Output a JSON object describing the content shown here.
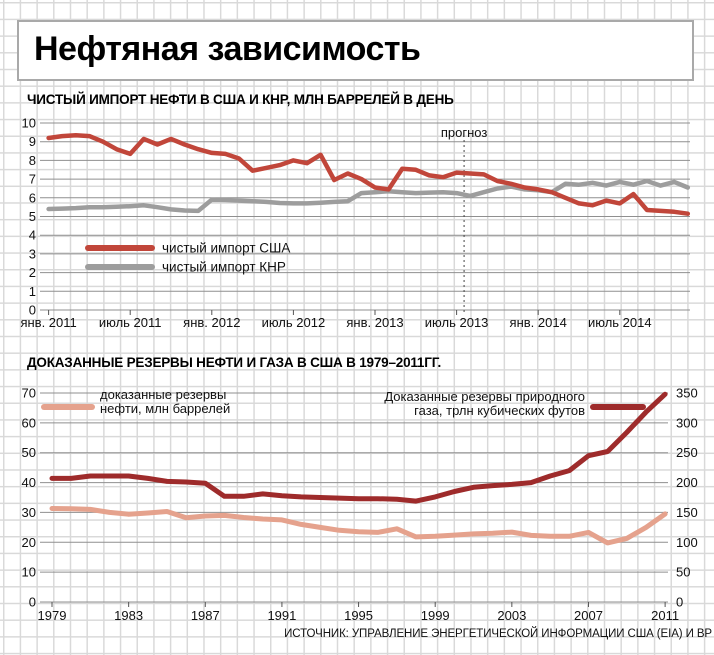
{
  "page": {
    "title": "Нефтяная зависимость",
    "source": "ИСТОЧНИК: УПРАВЛЕНИЕ ЭНЕРГЕТИЧЕСКОЙ ИНФОРМАЦИИ США (EIA) И BP"
  },
  "colors": {
    "usa_red": "#c1463a",
    "chn_gray": "#9d9d9d",
    "oil_salmon": "#e5a28d",
    "gas_maroon": "#9e2b2b",
    "plot_gridline": "#8f8f8f",
    "paper_grid": "#d9d9d9",
    "tick": "#555555",
    "forecast_line": "#444444"
  },
  "chart_data": [
    {
      "type": "line",
      "title": "ЧИСТЫЙ ИМПОРТ НЕФТИ В США И КНР, МЛН БАРРЕЛЕЙ В ДЕНЬ",
      "x_unit": "month",
      "x_range": [
        "янв. 2011",
        "дек. 2014"
      ],
      "x_tick_labels": [
        "янв. 2011",
        "июль 2011",
        "янв. 2012",
        "июль 2012",
        "янв. 2013",
        "июль 2013",
        "янв. 2014",
        "июль 2014"
      ],
      "x_tick_month_indices": [
        0,
        6,
        12,
        18,
        24,
        30,
        36,
        42
      ],
      "ylim": [
        0,
        10
      ],
      "y_ticks": [
        0,
        1,
        2,
        3,
        4,
        5,
        6,
        7,
        8,
        9,
        10
      ],
      "grid": true,
      "annotation": {
        "label": "прогноз",
        "x_month_index": 30.55
      },
      "legend_position": "inside-lower-left",
      "series": [
        {
          "name": "чистый импорт США",
          "color_key": "usa_red",
          "values": [
            9.2,
            9.3,
            9.35,
            9.3,
            9.0,
            8.6,
            8.35,
            9.15,
            8.85,
            9.15,
            8.85,
            8.6,
            8.4,
            8.35,
            8.1,
            7.45,
            7.6,
            7.75,
            8.0,
            7.85,
            8.3,
            6.95,
            7.3,
            7.0,
            6.55,
            6.45,
            7.55,
            7.5,
            7.2,
            7.1,
            7.35,
            7.3,
            7.25,
            6.9,
            6.75,
            6.55,
            6.45,
            6.3,
            6.0,
            5.7,
            5.6,
            5.85,
            5.7,
            6.2,
            5.35,
            5.3,
            5.25,
            5.15
          ]
        },
        {
          "name": "чистый импорт КНР",
          "color_key": "chn_gray",
          "values": [
            5.4,
            5.42,
            5.45,
            5.5,
            5.5,
            5.52,
            5.55,
            5.6,
            5.5,
            5.38,
            5.32,
            5.3,
            5.9,
            5.88,
            5.85,
            5.82,
            5.78,
            5.72,
            5.7,
            5.7,
            5.74,
            5.78,
            5.82,
            6.25,
            6.3,
            6.35,
            6.3,
            6.25,
            6.28,
            6.3,
            6.25,
            6.1,
            6.3,
            6.5,
            6.6,
            6.45,
            6.4,
            6.3,
            6.75,
            6.7,
            6.8,
            6.65,
            6.85,
            6.7,
            6.9,
            6.65,
            6.85,
            6.55
          ]
        }
      ]
    },
    {
      "type": "line",
      "title": "ДОКАЗАННЫЕ РЕЗЕРВЫ НЕФТИ И ГАЗА В США В 1979–2011ГГ.",
      "x_unit": "year",
      "x_range": [
        1979,
        2011
      ],
      "x_tick_labels": [
        "1979",
        "1983",
        "1987",
        "1991",
        "1995",
        "1999",
        "2003",
        "2007",
        "2011"
      ],
      "x_tick_year_indices": [
        0,
        4,
        8,
        12,
        16,
        20,
        24,
        28,
        32
      ],
      "ylim_left": [
        0,
        70
      ],
      "ylim_right": [
        0,
        350
      ],
      "y_tick_labels_left": [
        "0",
        "10",
        "20",
        "30",
        "40",
        "50",
        "60",
        "70"
      ],
      "y_tick_labels_right": [
        "0",
        "50",
        "100",
        "150",
        "200",
        "250",
        "300",
        "350"
      ],
      "grid": true,
      "series": [
        {
          "name": "доказанные резервы нефти, млн баррелей",
          "legend_lines": [
            "доказанные резервы",
            "нефти, млн  баррелей"
          ],
          "axis": "left",
          "color_key": "oil_salmon",
          "values": [
            31.3,
            31.2,
            31.0,
            30.0,
            29.4,
            29.8,
            30.3,
            28.2,
            28.8,
            29.0,
            28.3,
            27.8,
            27.5,
            26.0,
            25.0,
            24.0,
            23.5,
            23.3,
            24.5,
            21.8,
            22.0,
            22.4,
            22.8,
            23.0,
            23.4,
            22.3,
            22.0,
            22.0,
            23.3,
            19.8,
            21.3,
            25.0,
            29.5
          ]
        },
        {
          "name": "Доказанные резервы природного газа, трлн кубических футов",
          "legend_lines": [
            "Доказанные резервы природного",
            "газа, трлн кубических футов"
          ],
          "axis": "right",
          "color_key": "gas_maroon",
          "values": [
            207,
            207,
            211,
            211,
            211,
            207,
            202,
            201,
            199,
            177,
            177,
            181,
            178,
            176,
            175,
            174,
            173,
            173,
            172,
            169,
            176,
            185,
            192,
            195,
            197,
            200,
            211,
            220,
            245,
            252,
            284,
            318,
            348
          ]
        }
      ]
    }
  ]
}
